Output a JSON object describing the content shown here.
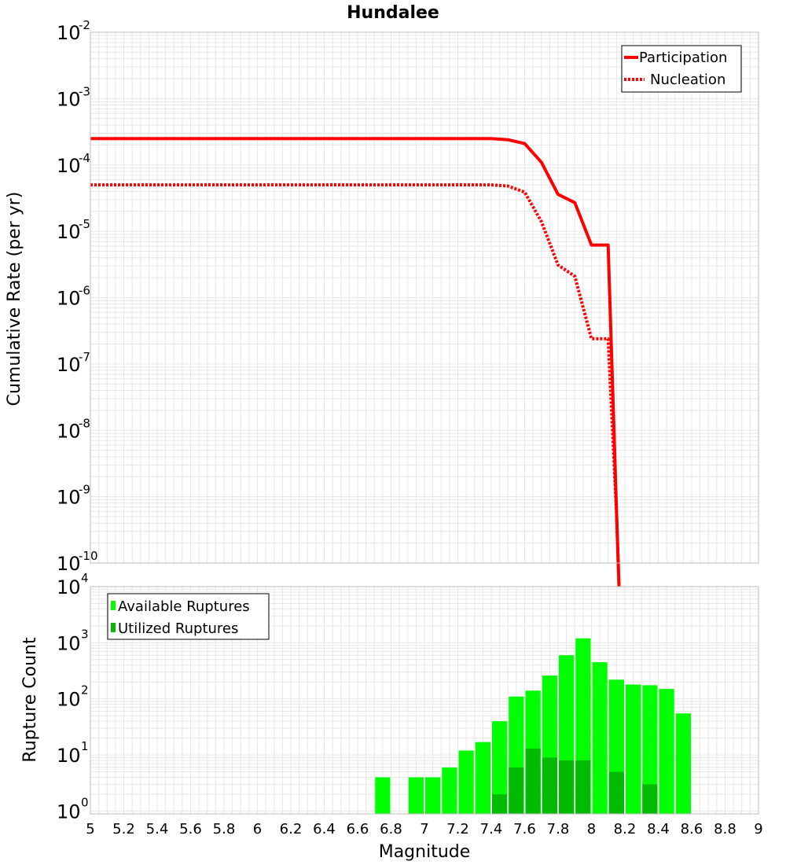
{
  "title": "Hundalee",
  "colors": {
    "participation": "#ff0000",
    "nucleation": "#ff0000",
    "available": "#00ff00",
    "utilized": "#00bb00",
    "grid": "#e6e6e6",
    "frame": "#bbbbbb"
  },
  "chart_data": [
    {
      "type": "line",
      "name": "rate-panel",
      "title": "Hundalee",
      "xlabel": "",
      "ylabel": "Cumulative Rate (per yr)",
      "yscale": "log",
      "xlim": [
        5,
        9
      ],
      "ylim_exp": [
        -10,
        -2
      ],
      "yticks": [
        {
          "base": "10",
          "exp": "-2",
          "e": -2
        },
        {
          "base": "10",
          "exp": "-3",
          "e": -3
        },
        {
          "base": "10",
          "exp": "-4",
          "e": -4
        },
        {
          "base": "10",
          "exp": "-5",
          "e": -5
        },
        {
          "base": "10",
          "exp": "-6",
          "e": -6
        },
        {
          "base": "10",
          "exp": "-7",
          "e": -7
        },
        {
          "base": "10",
          "exp": "-8",
          "e": -8
        },
        {
          "base": "10",
          "exp": "-9",
          "e": -9
        },
        {
          "base": "10",
          "exp": "-10",
          "e": -10
        }
      ],
      "legend": {
        "placement": "top-right",
        "entries": [
          "Participation",
          "Nucleation"
        ]
      },
      "series": [
        {
          "name": "Participation",
          "style": "solid",
          "x": [
            5.0,
            7.4,
            7.5,
            7.6,
            7.7,
            7.8,
            7.9,
            8.0,
            8.1,
            8.15,
            8.2
          ],
          "y": [
            0.00025,
            0.00025,
            0.00024,
            0.00021,
            0.00011,
            3.6e-05,
            2.7e-05,
            6.2e-06,
            6.2e-06,
            5.9e-10,
            1e-13
          ]
        },
        {
          "name": "Nucleation",
          "style": "dotted",
          "x": [
            5.0,
            7.4,
            7.5,
            7.6,
            7.7,
            7.8,
            7.9,
            8.0,
            8.1,
            8.15,
            8.2
          ],
          "y": [
            5e-05,
            5e-05,
            4.8e-05,
            3.9e-05,
            1.4e-05,
            3.1e-06,
            2.1e-06,
            2.4e-07,
            2.4e-07,
            5.5e-10,
            1e-13
          ]
        }
      ]
    },
    {
      "type": "bar",
      "name": "count-panel",
      "xlabel": "Magnitude",
      "ylabel": "Rupture Count",
      "yscale": "log",
      "xlim": [
        5,
        9
      ],
      "ylim_exp": [
        -0.05,
        4
      ],
      "xticks": [
        "5",
        "5.2",
        "5.4",
        "5.6",
        "5.8",
        "6",
        "6.2",
        "6.4",
        "6.6",
        "6.8",
        "7",
        "7.2",
        "7.4",
        "7.6",
        "7.8",
        "8",
        "8.2",
        "8.4",
        "8.6",
        "8.8",
        "9"
      ],
      "yticks": [
        {
          "base": "10",
          "exp": "4",
          "e": 4
        },
        {
          "base": "10",
          "exp": "3",
          "e": 3
        },
        {
          "base": "10",
          "exp": "2",
          "e": 2
        },
        {
          "base": "10",
          "exp": "1",
          "e": 1
        },
        {
          "base": "10",
          "exp": "0",
          "e": 0
        }
      ],
      "legend": {
        "placement": "top-left",
        "entries": [
          "Available Ruptures",
          "Utilized Ruptures"
        ]
      },
      "bin_width": 0.1,
      "bin_centers": [
        6.75,
        6.95,
        7.05,
        7.15,
        7.25,
        7.35,
        7.45,
        7.55,
        7.65,
        7.75,
        7.85,
        7.95,
        8.05,
        8.15,
        8.25,
        8.35,
        8.45,
        8.55
      ],
      "series": [
        {
          "name": "Available Ruptures",
          "values": [
            4,
            4,
            4,
            6,
            12,
            17,
            40,
            110,
            140,
            260,
            600,
            1200,
            450,
            220,
            180,
            175,
            150,
            55
          ]
        },
        {
          "name": "Utilized Ruptures",
          "values": [
            0,
            0,
            0,
            0,
            0,
            0,
            2,
            6,
            13,
            9,
            8,
            8,
            0,
            5,
            0,
            3,
            0,
            0
          ]
        }
      ]
    }
  ]
}
